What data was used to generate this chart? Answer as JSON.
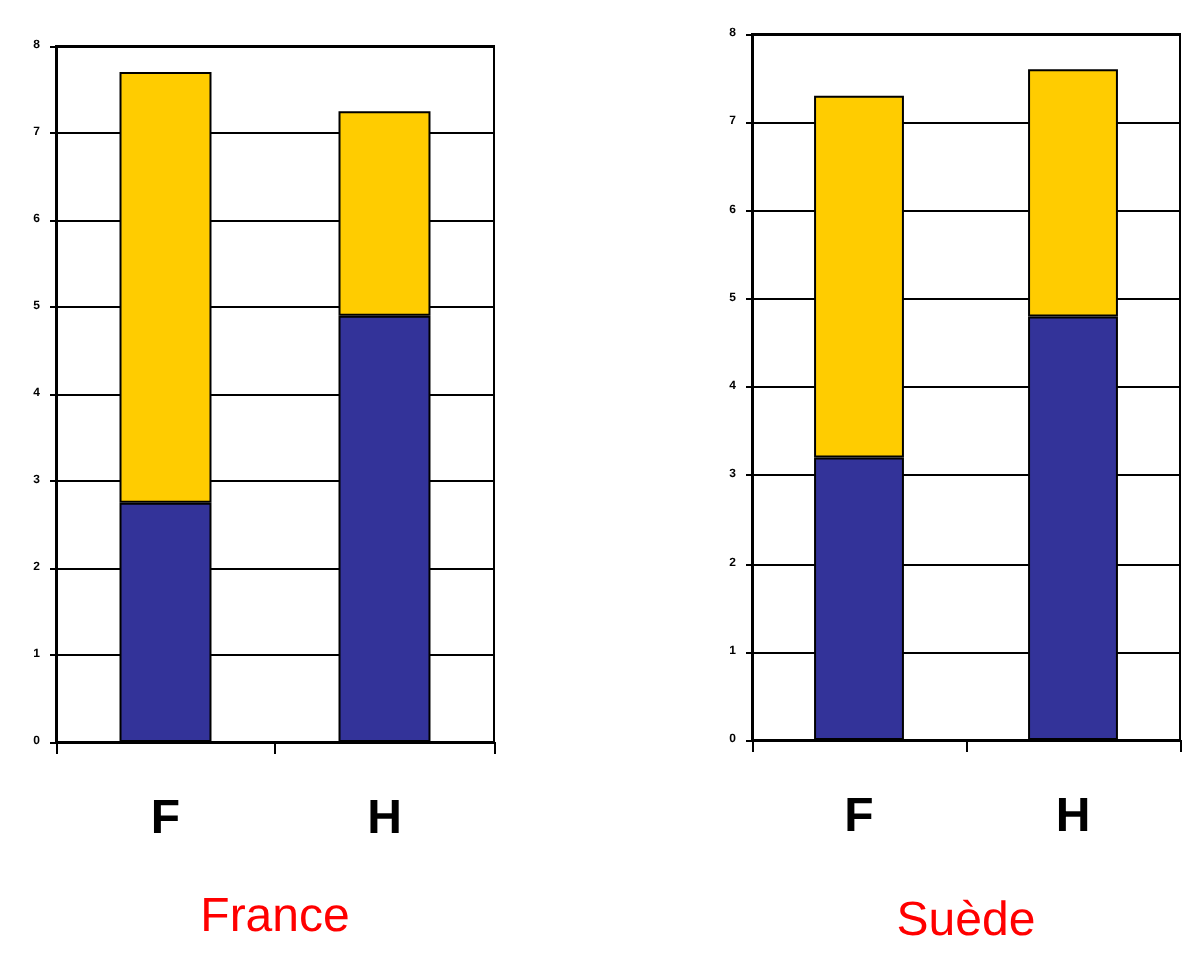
{
  "chart_data": [
    {
      "type": "bar",
      "xlabel": "France",
      "categories": [
        "F",
        "H"
      ],
      "stacked": true,
      "series": [
        {
          "color": "#333399",
          "values": [
            2.75,
            4.9
          ]
        },
        {
          "color": "#ffcc00",
          "values": [
            4.95,
            2.35
          ]
        }
      ],
      "ylim": [
        0,
        8
      ],
      "yticks": [
        0,
        1,
        2,
        3,
        4,
        5,
        6,
        7,
        8
      ],
      "grid": "y"
    },
    {
      "type": "bar",
      "xlabel": "Suède",
      "categories": [
        "F",
        "H"
      ],
      "stacked": true,
      "series": [
        {
          "color": "#333399",
          "values": [
            3.2,
            4.8
          ]
        },
        {
          "color": "#ffcc00",
          "values": [
            4.1,
            2.8
          ]
        }
      ],
      "ylim": [
        0,
        8
      ],
      "yticks": [
        0,
        1,
        2,
        3,
        4,
        5,
        6,
        7,
        8
      ],
      "grid": "y"
    }
  ]
}
